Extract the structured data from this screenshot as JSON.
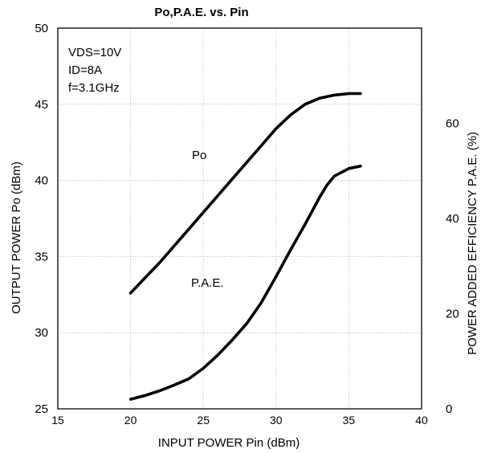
{
  "chart_data": {
    "type": "line",
    "title": "Po,P.A.E. vs. Pin",
    "xlabel": "INPUT POWER Pin (dBm)",
    "ylabel": "OUTPUT POWER Po (dBm)",
    "y2label": "POWER ADDED EFFICIENCY P.A.E. (%)",
    "xlim": [
      15,
      40
    ],
    "ylim": [
      25,
      50
    ],
    "y2lim": [
      0,
      80
    ],
    "grid": true,
    "xticks": [
      "15",
      "20",
      "25",
      "30",
      "35",
      "40"
    ],
    "yticks": [
      "25",
      "30",
      "35",
      "40",
      "45",
      "50"
    ],
    "y2ticks": [
      "0",
      "20",
      "40",
      "60"
    ],
    "annotations": [
      "VDS=10V",
      "ID=8A",
      "f=3.1GHz"
    ],
    "series": [
      {
        "name": "Po",
        "axis": "left",
        "x": [
          20,
          21,
          22,
          23,
          24,
          25,
          26,
          27,
          28,
          29,
          30,
          31,
          32,
          33,
          34,
          35,
          35.8
        ],
        "y": [
          32.6,
          33.6,
          34.6,
          35.7,
          36.8,
          37.9,
          39.0,
          40.1,
          41.2,
          42.3,
          43.4,
          44.3,
          45.0,
          45.4,
          45.6,
          45.7,
          45.7
        ]
      },
      {
        "name": "P.A.E.",
        "axis": "right",
        "x": [
          20,
          21,
          22,
          23,
          24,
          25,
          26,
          27,
          28,
          29,
          30,
          31,
          32,
          33,
          33.5,
          34,
          35,
          35.8
        ],
        "y": [
          2.0,
          2.8,
          3.8,
          5.0,
          6.3,
          8.5,
          11.3,
          14.5,
          18.0,
          22.4,
          27.8,
          33.4,
          38.8,
          44.5,
          47.0,
          48.9,
          50.5,
          51.0
        ]
      }
    ]
  }
}
